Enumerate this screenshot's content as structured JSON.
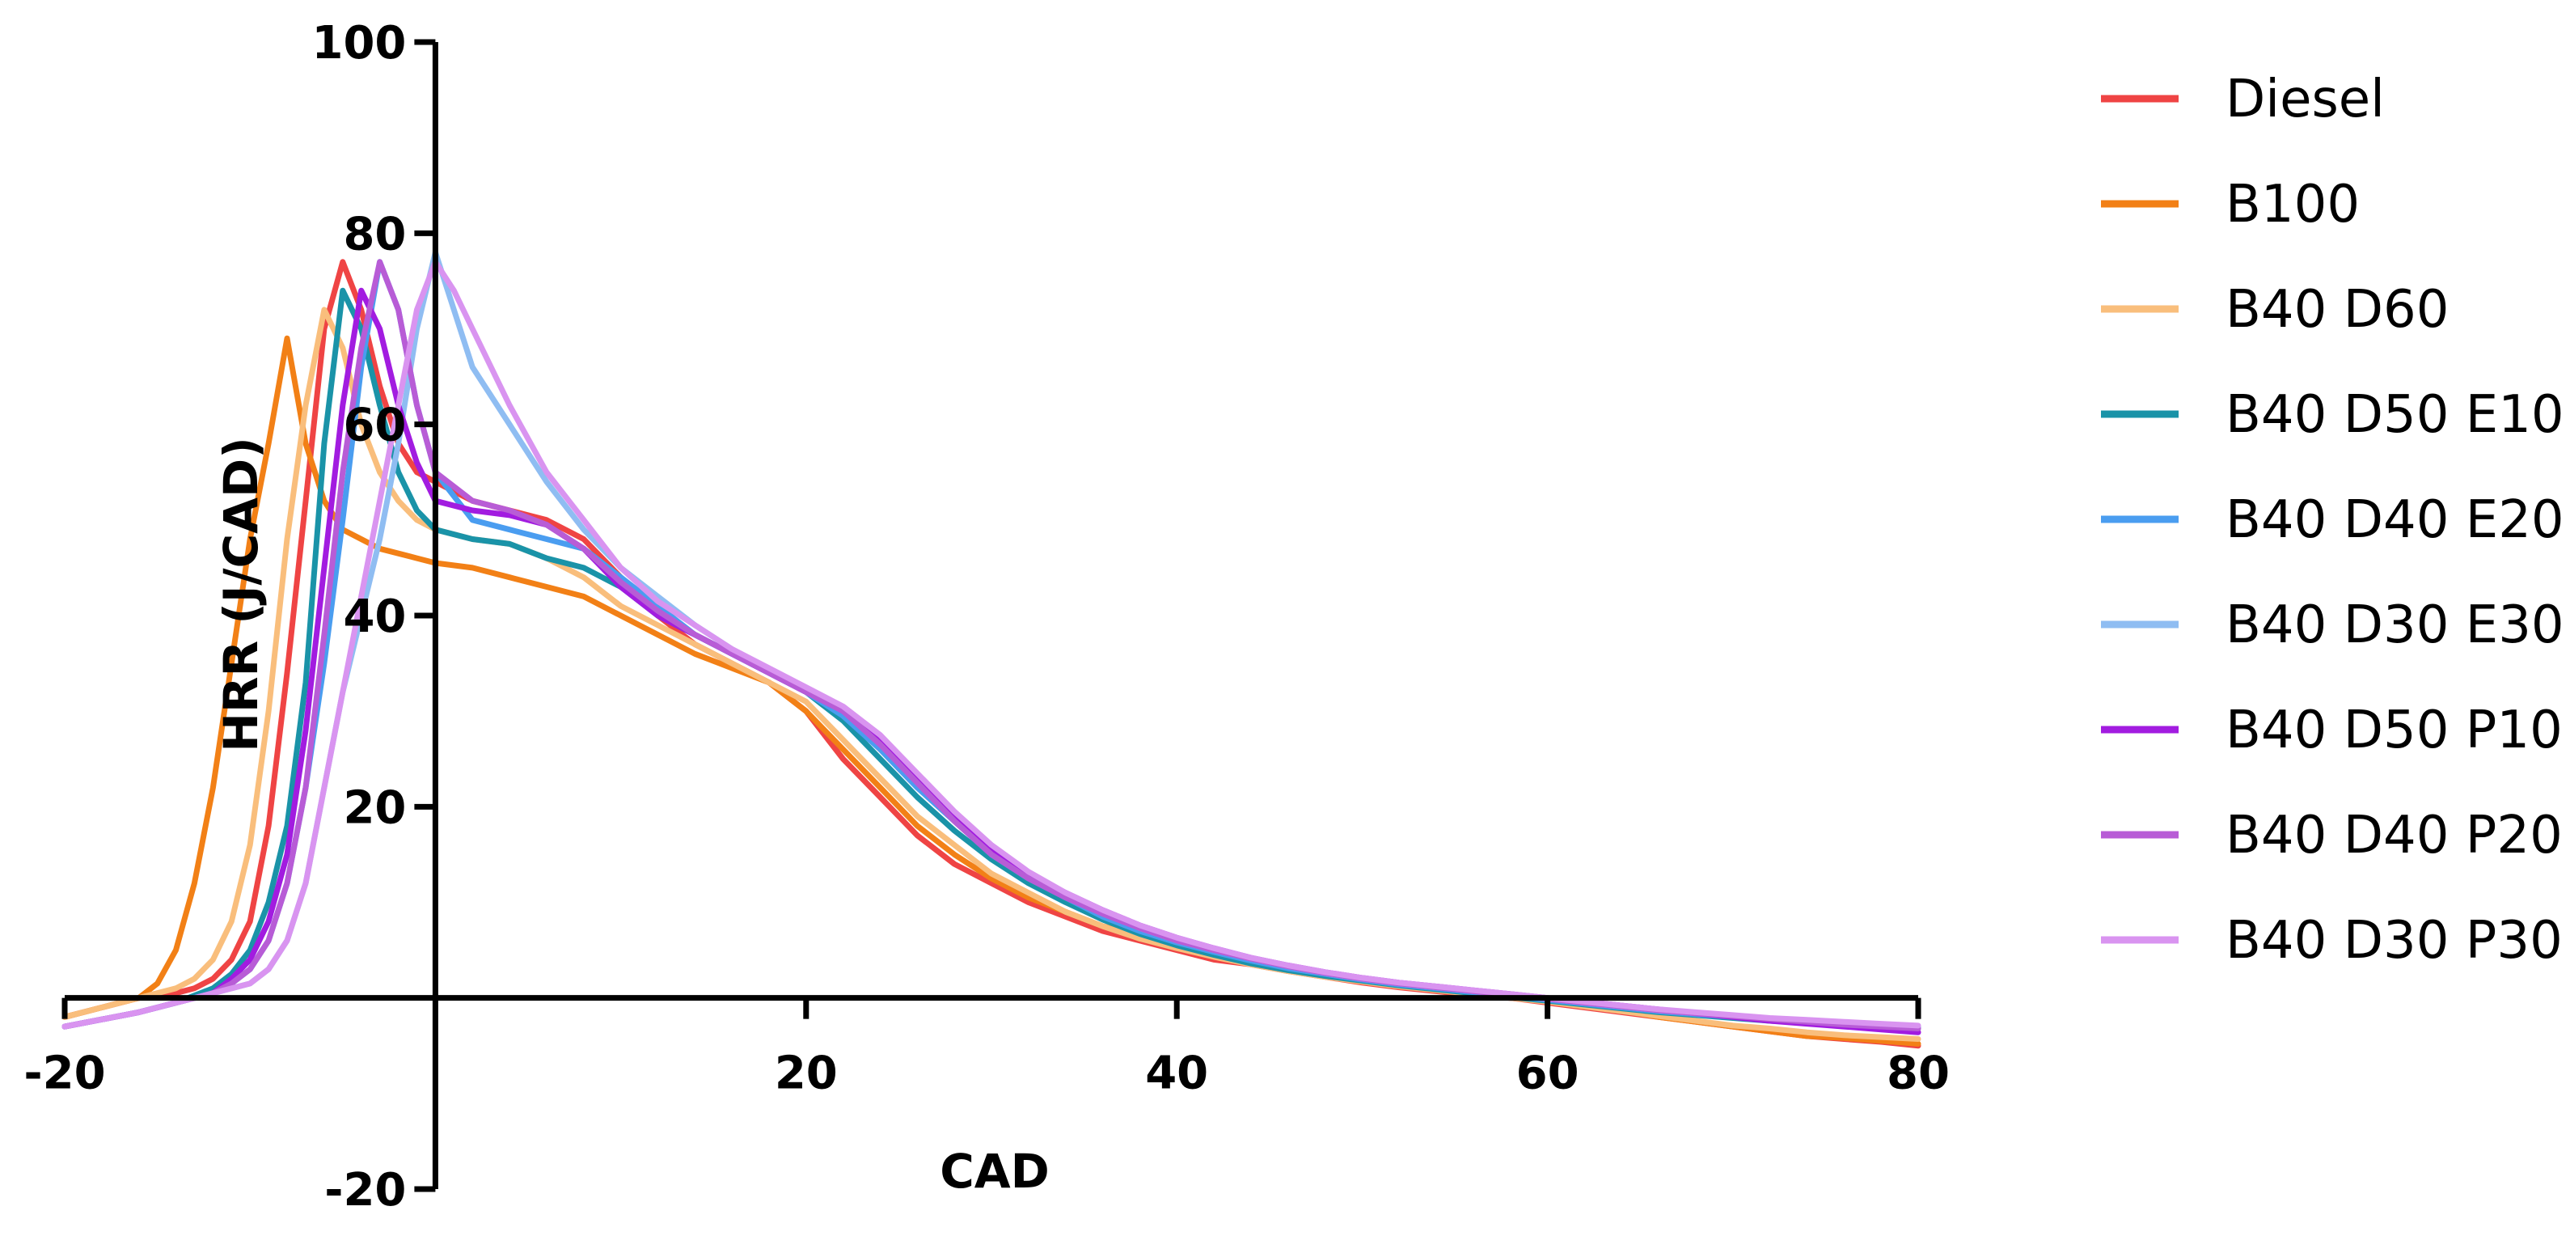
{
  "chart_data": {
    "type": "line",
    "xlabel": "CAD",
    "ylabel": "HRR (J/CAD)",
    "xlim": [
      -20,
      80
    ],
    "ylim": [
      -20,
      100
    ],
    "xticks": [
      -20,
      20,
      40,
      60,
      80
    ],
    "yticks": [
      -20,
      20,
      40,
      60,
      80,
      100
    ],
    "grid": false,
    "legend": "right",
    "series": [
      {
        "name": "Diesel",
        "color": "#ef4444",
        "x": [
          -20,
          -16,
          -14,
          -13,
          -12,
          -11,
          -10,
          -9,
          -8,
          -7,
          -6,
          -5,
          -4,
          -3,
          -2,
          -1,
          0,
          2,
          4,
          6,
          8,
          10,
          12,
          14,
          16,
          18,
          20,
          22,
          24,
          26,
          28,
          30,
          32,
          34,
          36,
          38,
          40,
          42,
          44,
          46,
          48,
          50,
          52,
          54,
          56,
          58,
          60,
          62,
          64,
          66,
          68,
          70,
          72,
          74,
          76,
          78,
          80
        ],
        "y": [
          -2,
          0,
          0.5,
          1,
          2,
          4,
          8,
          18,
          34,
          52,
          70,
          77,
          72,
          64,
          58,
          55,
          54,
          52,
          51,
          50,
          48,
          44,
          40,
          37,
          35,
          33,
          30,
          25,
          21,
          17,
          14,
          12,
          10,
          8.5,
          7,
          6,
          5,
          4,
          3.5,
          2.8,
          2.2,
          1.6,
          1.1,
          0.7,
          0.3,
          0,
          -0.5,
          -1,
          -1.5,
          -2,
          -2.5,
          -3,
          -3.5,
          -4,
          -4.3,
          -4.6,
          -5
        ]
      },
      {
        "name": "B100",
        "color": "#f28016",
        "x": [
          -20,
          -18,
          -16,
          -15,
          -14,
          -13,
          -12,
          -11,
          -10,
          -9,
          -8,
          -7,
          -6,
          -5,
          -4,
          -3,
          -2,
          -1,
          0,
          2,
          4,
          6,
          8,
          10,
          12,
          14,
          16,
          18,
          20,
          22,
          24,
          26,
          28,
          30,
          32,
          34,
          36,
          38,
          40,
          42,
          44,
          46,
          48,
          50,
          52,
          54,
          56,
          58,
          60,
          62,
          64,
          66,
          68,
          70,
          72,
          74,
          76,
          78,
          80
        ],
        "y": [
          -2,
          -1,
          0,
          1.5,
          5,
          12,
          22,
          35,
          48,
          58,
          69,
          58,
          52,
          49,
          48,
          47,
          46.5,
          46,
          45.5,
          45,
          44,
          43,
          42,
          40,
          38,
          36,
          34.5,
          33,
          30,
          26,
          22,
          18,
          15,
          12.5,
          10.5,
          9,
          7.5,
          6.5,
          5.5,
          4.5,
          3.8,
          3.1,
          2.5,
          2,
          1.5,
          1,
          0.6,
          0.2,
          -0.3,
          -0.8,
          -1.3,
          -2,
          -2.5,
          -3,
          -3.5,
          -4,
          -4.2,
          -4.5,
          -4.8
        ]
      },
      {
        "name": "B40 D60",
        "color": "#f9be7c",
        "x": [
          -20,
          -16,
          -14,
          -13,
          -12,
          -11,
          -10,
          -9,
          -8,
          -7,
          -6,
          -5,
          -4,
          -3,
          -2,
          -1,
          0,
          2,
          4,
          6,
          8,
          10,
          12,
          14,
          16,
          18,
          20,
          22,
          24,
          26,
          28,
          30,
          32,
          34,
          36,
          38,
          40,
          42,
          44,
          46,
          48,
          50,
          52,
          54,
          56,
          58,
          60,
          62,
          64,
          66,
          68,
          70,
          72,
          74,
          76,
          78,
          80
        ],
        "y": [
          -2,
          0,
          1,
          2,
          4,
          8,
          16,
          30,
          48,
          62,
          72,
          68,
          60,
          55,
          52,
          50,
          49,
          48,
          47.5,
          46,
          44,
          41,
          39,
          37,
          35,
          33,
          31,
          27,
          23,
          19,
          16,
          13,
          11,
          9,
          7.5,
          6.2,
          5.2,
          4.3,
          3.5,
          2.8,
          2.2,
          1.7,
          1.2,
          0.8,
          0.4,
          0,
          -0.4,
          -0.9,
          -1.4,
          -1.9,
          -2.4,
          -2.9,
          -3.2,
          -3.6,
          -3.9,
          -4.1,
          -4.3
        ]
      },
      {
        "name": "B40 D50 E10",
        "color": "#1a93a8",
        "x": [
          -20,
          -16,
          -14,
          -12,
          -11,
          -10,
          -9,
          -8,
          -7,
          -6,
          -5,
          -4,
          -3,
          -2,
          -1,
          0,
          2,
          4,
          6,
          8,
          10,
          12,
          14,
          16,
          18,
          20,
          22,
          24,
          26,
          28,
          30,
          32,
          34,
          36,
          38,
          40,
          42,
          44,
          46,
          48,
          50,
          52,
          54,
          56,
          58,
          60,
          62,
          64,
          66,
          68,
          70,
          72,
          74,
          76,
          78,
          80
        ],
        "y": [
          -3,
          -1.5,
          -0.5,
          1,
          2.5,
          5,
          10,
          18,
          33,
          58,
          74,
          70,
          62,
          55,
          51,
          49,
          48,
          47.5,
          46,
          45,
          43,
          40,
          38,
          36,
          34,
          32,
          29,
          25,
          21,
          17.5,
          14.5,
          12,
          10,
          8.2,
          6.7,
          5.5,
          4.5,
          3.6,
          2.9,
          2.3,
          1.8,
          1.3,
          0.9,
          0.5,
          0.1,
          -0.3,
          -0.7,
          -1.1,
          -1.5,
          -1.8,
          -2.1,
          -2.4,
          -2.6,
          -2.8,
          -3,
          -3.2
        ]
      },
      {
        "name": "B40 D40 E20",
        "color": "#4a9df0",
        "x": [
          -20,
          -16,
          -14,
          -12,
          -11,
          -10,
          -9,
          -8,
          -7,
          -6,
          -5,
          -4,
          -3,
          -2,
          -1,
          0,
          2,
          4,
          6,
          8,
          10,
          12,
          14,
          16,
          18,
          20,
          22,
          24,
          26,
          28,
          30,
          32,
          34,
          36,
          38,
          40,
          42,
          44,
          46,
          48,
          50,
          52,
          54,
          56,
          58,
          60,
          62,
          64,
          66,
          68,
          70,
          72,
          74,
          76,
          78,
          80
        ],
        "y": [
          -3,
          -1.5,
          -0.5,
          0.5,
          1.5,
          3,
          6,
          12,
          22,
          35,
          50,
          66,
          77,
          72,
          62,
          55,
          50,
          49,
          48,
          47,
          44,
          41,
          38,
          36,
          34,
          32,
          29.5,
          26,
          22,
          18.5,
          15,
          12.5,
          10.5,
          8.5,
          7,
          5.8,
          4.8,
          3.9,
          3.1,
          2.5,
          1.9,
          1.4,
          1,
          0.6,
          0.2,
          -0.2,
          -0.6,
          -1,
          -1.4,
          -1.7,
          -2,
          -2.3,
          -2.5,
          -2.7,
          -2.9,
          -3.1
        ]
      },
      {
        "name": "B40 D30 E30",
        "color": "#8fbdf2",
        "x": [
          -20,
          -16,
          -14,
          -12,
          -10,
          -9,
          -8,
          -7,
          -6,
          -5,
          -4,
          -3,
          -2,
          -1,
          0,
          1,
          2,
          4,
          6,
          8,
          10,
          12,
          14,
          16,
          18,
          20,
          22,
          24,
          26,
          28,
          30,
          32,
          34,
          36,
          38,
          40,
          42,
          44,
          46,
          48,
          50,
          52,
          54,
          56,
          58,
          60,
          62,
          64,
          66,
          68,
          70,
          72,
          74,
          76,
          78,
          80
        ],
        "y": [
          -3,
          -1.5,
          -0.5,
          0.5,
          1.5,
          3,
          6,
          12,
          22,
          32,
          40,
          48,
          58,
          70,
          78,
          72,
          66,
          60,
          54,
          49,
          45,
          42,
          39,
          36.5,
          34,
          32,
          30,
          27,
          23,
          19,
          15.5,
          13,
          11,
          9,
          7.3,
          6,
          5,
          4.1,
          3.3,
          2.6,
          2,
          1.5,
          1.1,
          0.7,
          0.3,
          -0.1,
          -0.5,
          -0.9,
          -1.3,
          -1.6,
          -1.9,
          -2.2,
          -2.4,
          -2.6,
          -2.8,
          -3
        ]
      },
      {
        "name": "B40 D50 P10",
        "color": "#a21ce0",
        "x": [
          -20,
          -16,
          -14,
          -12,
          -11,
          -10,
          -9,
          -8,
          -7,
          -6,
          -5,
          -4,
          -3,
          -2,
          -1,
          0,
          2,
          4,
          6,
          8,
          10,
          12,
          14,
          16,
          18,
          20,
          22,
          24,
          26,
          28,
          30,
          32,
          34,
          36,
          38,
          40,
          42,
          44,
          46,
          48,
          50,
          52,
          54,
          56,
          58,
          60,
          62,
          64,
          66,
          68,
          70,
          72,
          74,
          76,
          78,
          80
        ],
        "y": [
          -3,
          -1.5,
          -0.5,
          0.5,
          2,
          4,
          8,
          15,
          28,
          45,
          62,
          74,
          70,
          62,
          56,
          52,
          51,
          50.5,
          49.5,
          47,
          43,
          40,
          38,
          36,
          34,
          32,
          30,
          27,
          23,
          19,
          15.5,
          13,
          11,
          9.2,
          7.6,
          6.3,
          5.2,
          4.2,
          3.4,
          2.7,
          2.1,
          1.6,
          1.2,
          0.8,
          0.4,
          0,
          -0.4,
          -0.8,
          -1.2,
          -1.6,
          -2,
          -2.4,
          -2.7,
          -3,
          -3.3,
          -3.6
        ]
      },
      {
        "name": "B40 D40 P20",
        "color": "#b85cd6",
        "x": [
          -20,
          -16,
          -14,
          -12,
          -11,
          -10,
          -9,
          -8,
          -7,
          -6,
          -5,
          -4,
          -3,
          -2,
          -1,
          0,
          2,
          4,
          6,
          8,
          10,
          12,
          14,
          16,
          18,
          20,
          22,
          24,
          26,
          28,
          30,
          32,
          34,
          36,
          38,
          40,
          42,
          44,
          46,
          48,
          50,
          52,
          54,
          56,
          58,
          60,
          62,
          64,
          66,
          68,
          70,
          72,
          74,
          76,
          78,
          80
        ],
        "y": [
          -3,
          -1.5,
          -0.5,
          0.5,
          1.5,
          3,
          6,
          12,
          22,
          38,
          55,
          68,
          77,
          72,
          62,
          55,
          52,
          51,
          49.5,
          47,
          43.5,
          40.5,
          38,
          36,
          34,
          32,
          30,
          26.5,
          22.5,
          18.5,
          15,
          12.5,
          10.5,
          8.8,
          7.3,
          6,
          5,
          4.1,
          3.3,
          2.6,
          2,
          1.5,
          1.1,
          0.7,
          0.3,
          -0.1,
          -0.5,
          -0.9,
          -1.3,
          -1.6,
          -1.9,
          -2.2,
          -2.5,
          -2.8,
          -3,
          -3.2
        ]
      },
      {
        "name": "B40 D30 P30",
        "color": "#d994f0",
        "x": [
          -20,
          -16,
          -14,
          -12,
          -10,
          -9,
          -8,
          -7,
          -6,
          -5,
          -4,
          -3,
          -2,
          -1,
          0,
          1,
          2,
          4,
          6,
          8,
          10,
          12,
          14,
          16,
          18,
          20,
          22,
          24,
          26,
          28,
          30,
          32,
          34,
          36,
          38,
          40,
          42,
          44,
          46,
          48,
          50,
          52,
          54,
          56,
          58,
          60,
          62,
          64,
          66,
          68,
          70,
          72,
          74,
          76,
          78,
          80
        ],
        "y": [
          -3,
          -1.5,
          -0.5,
          0.5,
          1.5,
          3,
          6,
          12,
          22,
          32,
          42,
          52,
          62,
          72,
          77,
          74,
          70,
          62,
          55,
          50,
          45,
          41.5,
          39,
          36.5,
          34.5,
          32.5,
          30.5,
          27.5,
          23.5,
          19.5,
          16,
          13.2,
          11,
          9.2,
          7.6,
          6.3,
          5.2,
          4.2,
          3.4,
          2.7,
          2.1,
          1.6,
          1.2,
          0.8,
          0.4,
          0,
          -0.4,
          -0.8,
          -1.2,
          -1.5,
          -1.8,
          -2.1,
          -2.3,
          -2.5,
          -2.7,
          -2.9
        ]
      }
    ]
  }
}
